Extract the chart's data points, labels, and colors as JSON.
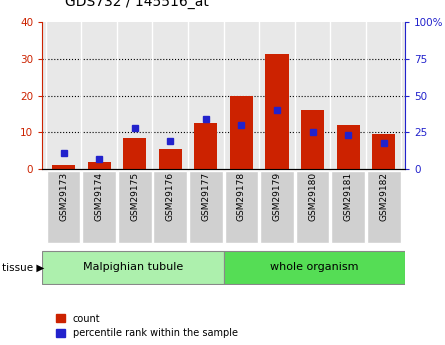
{
  "title": "GDS732 / 145516_at",
  "samples": [
    "GSM29173",
    "GSM29174",
    "GSM29175",
    "GSM29176",
    "GSM29177",
    "GSM29178",
    "GSM29179",
    "GSM29180",
    "GSM29181",
    "GSM29182"
  ],
  "counts": [
    1,
    2,
    8.5,
    5.5,
    12.5,
    20,
    31.5,
    16,
    12,
    9.5
  ],
  "percentile": [
    11,
    7,
    28,
    19,
    34,
    30,
    40,
    25,
    23,
    18
  ],
  "tissue_groups": [
    {
      "label": "Malpighian tubule",
      "start": 0,
      "end": 5,
      "color": "#adf0ad"
    },
    {
      "label": "whole organism",
      "start": 5,
      "end": 10,
      "color": "#55dd55"
    }
  ],
  "bar_color": "#cc2200",
  "dot_color": "#2222cc",
  "left_ylim": [
    0,
    40
  ],
  "right_ylim": [
    0,
    100
  ],
  "left_yticks": [
    0,
    10,
    20,
    30,
    40
  ],
  "right_yticks": [
    0,
    25,
    50,
    75,
    100
  ],
  "right_yticklabels": [
    "0",
    "25",
    "50",
    "75",
    "100%"
  ],
  "background_color": "#ffffff",
  "plot_bg_color": "#e8e8e8",
  "sample_box_color": "#d0d0d0",
  "tissue_label": "tissue",
  "legend_count_label": "count",
  "legend_pct_label": "percentile rank within the sample",
  "title_fontsize": 10,
  "tick_fontsize": 7.5,
  "sample_fontsize": 6.5,
  "tissue_fontsize": 8,
  "legend_fontsize": 7
}
